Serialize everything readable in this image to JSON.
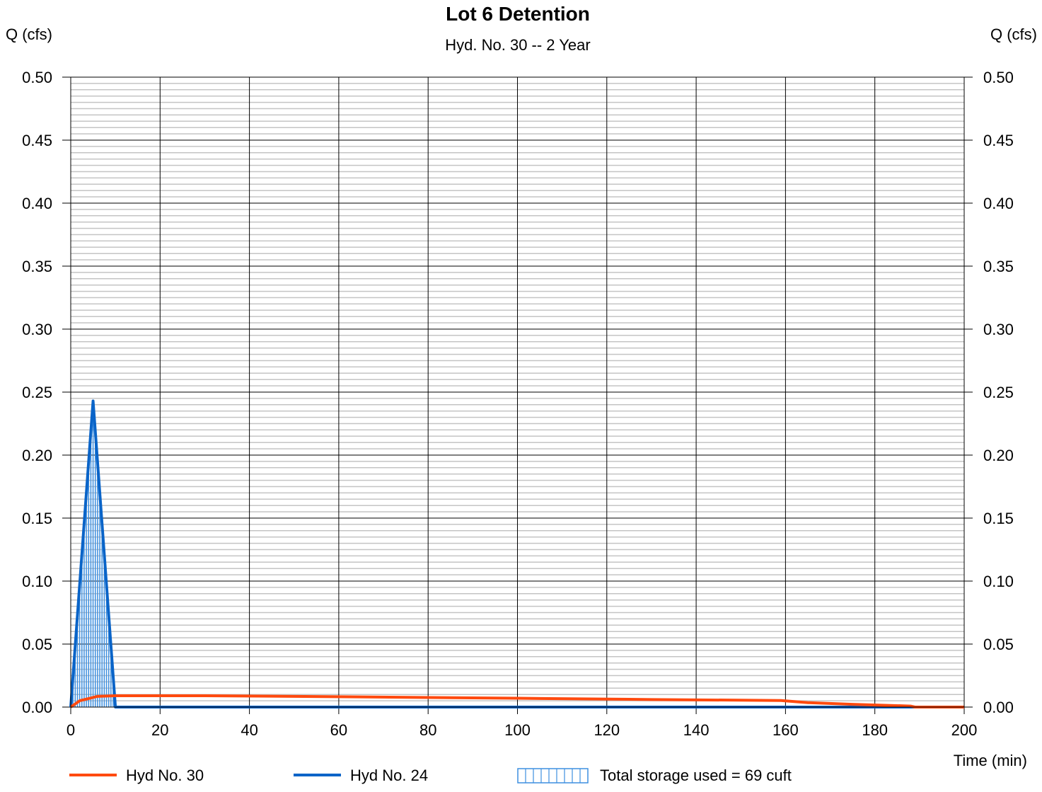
{
  "chart_data": {
    "type": "line",
    "title": "Lot 6 Detention",
    "subtitle": "Hyd. No. 30 -- 2 Year",
    "ylabel_left": "Q (cfs)",
    "ylabel_right": "Q (cfs)",
    "xlabel": "Time (min)",
    "xlim": [
      0,
      200
    ],
    "ylim": [
      0,
      0.5
    ],
    "x_ticks": [
      "0",
      "20",
      "40",
      "60",
      "80",
      "100",
      "120",
      "140",
      "160",
      "180",
      "200"
    ],
    "y_ticks": [
      "0.00",
      "0.05",
      "0.10",
      "0.15",
      "0.20",
      "0.25",
      "0.30",
      "0.35",
      "0.40",
      "0.45",
      "0.50"
    ],
    "grid": true,
    "legend_position": "bottom",
    "series": [
      {
        "name": "Hyd No. 30",
        "color": "#ff4a0f",
        "x": [
          0,
          2,
          6,
          10,
          30,
          60,
          100,
          130,
          159,
          165,
          175,
          188,
          189,
          200
        ],
        "y": [
          0,
          0.005,
          0.0085,
          0.009,
          0.009,
          0.0082,
          0.007,
          0.006,
          0.0052,
          0.0035,
          0.0022,
          0.0008,
          0,
          0
        ]
      },
      {
        "name": "Hyd No. 24",
        "color": "#0a64c8",
        "x": [
          0,
          5,
          10,
          200
        ],
        "y": [
          0,
          0.243,
          0,
          0
        ]
      }
    ],
    "storage_legend": "Total storage used = 69 cuft",
    "storage_color": "#3d8fe0"
  }
}
